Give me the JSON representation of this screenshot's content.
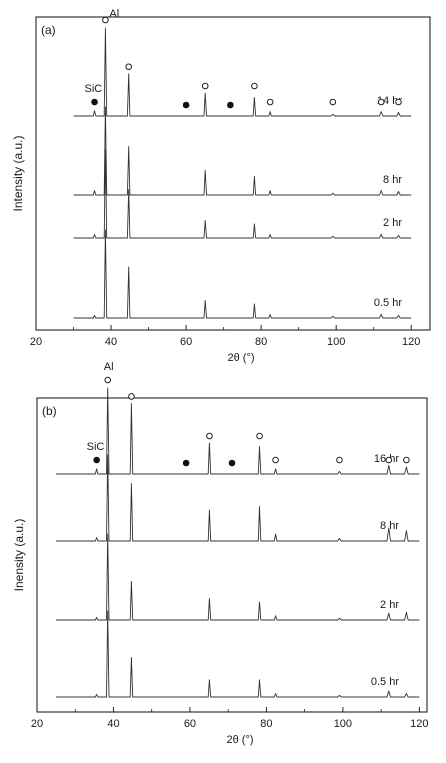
{
  "chart_data": [
    {
      "type": "line",
      "panel_label": "(a)",
      "xlabel": "2θ (°)",
      "ylabel": "Intensity (a.u.)",
      "xlim": [
        20,
        125
      ],
      "xticks": [
        20,
        40,
        60,
        80,
        100,
        120
      ],
      "x_range_plotted": [
        30,
        120
      ],
      "grid": false,
      "phase_labels": {
        "sic": "SiC",
        "al": "Al"
      },
      "series": [
        {
          "name": "14 hr",
          "peaks": [
            [
              35.6,
              0.06
            ],
            [
              38.5,
              1.0
            ],
            [
              44.7,
              0.48
            ],
            [
              65.1,
              0.26
            ],
            [
              78.2,
              0.21
            ],
            [
              82.4,
              0.05
            ],
            [
              99.1,
              0.02
            ],
            [
              112.0,
              0.05
            ],
            [
              116.6,
              0.04
            ]
          ],
          "open_markers": [
            38.5,
            44.7,
            65.1,
            78.2,
            82.4,
            99.1,
            112.0,
            116.6
          ],
          "filled_markers": [
            35.6,
            60.0,
            71.8
          ]
        },
        {
          "name": "8 hr",
          "peaks": [
            [
              35.6,
              0.05
            ],
            [
              38.5,
              1.0
            ],
            [
              44.7,
              0.55
            ],
            [
              65.1,
              0.28
            ],
            [
              78.2,
              0.21
            ],
            [
              82.4,
              0.05
            ],
            [
              99.1,
              0.02
            ],
            [
              112.0,
              0.05
            ],
            [
              116.6,
              0.04
            ]
          ]
        },
        {
          "name": "2 hr",
          "peaks": [
            [
              35.6,
              0.04
            ],
            [
              38.5,
              1.0
            ],
            [
              44.7,
              0.55
            ],
            [
              65.1,
              0.2
            ],
            [
              78.2,
              0.16
            ],
            [
              82.4,
              0.04
            ],
            [
              99.1,
              0.02
            ],
            [
              112.0,
              0.04
            ],
            [
              116.6,
              0.03
            ]
          ]
        },
        {
          "name": "0.5 hr",
          "peaks": [
            [
              35.6,
              0.03
            ],
            [
              38.5,
              1.0
            ],
            [
              44.7,
              0.58
            ],
            [
              65.1,
              0.2
            ],
            [
              78.2,
              0.16
            ],
            [
              82.4,
              0.04
            ],
            [
              99.1,
              0.02
            ],
            [
              112.0,
              0.04
            ],
            [
              116.6,
              0.03
            ]
          ]
        }
      ]
    },
    {
      "type": "line",
      "panel_label": "(b)",
      "xlabel": "2θ (°)",
      "ylabel": "Inensity (a.u.)",
      "xlim": [
        20,
        122
      ],
      "xticks": [
        20,
        40,
        60,
        80,
        100,
        120
      ],
      "x_range_plotted": [
        25,
        120
      ],
      "grid": false,
      "phase_labels": {
        "sic": "SiC",
        "al": "Al"
      },
      "series": [
        {
          "name": "16 hr",
          "peaks": [
            [
              35.6,
              0.06
            ],
            [
              38.5,
              1.0
            ],
            [
              44.7,
              0.82
            ],
            [
              65.1,
              0.36
            ],
            [
              78.2,
              0.32
            ],
            [
              82.4,
              0.06
            ],
            [
              99.1,
              0.03
            ],
            [
              112.0,
              0.1
            ],
            [
              116.6,
              0.08
            ]
          ],
          "open_markers": [
            38.5,
            44.7,
            65.1,
            78.2,
            82.4,
            99.1,
            112.0,
            116.6
          ],
          "filled_markers": [
            35.6,
            59.0,
            71.0
          ]
        },
        {
          "name": "8 hr",
          "peaks": [
            [
              35.6,
              0.04
            ],
            [
              38.5,
              1.0
            ],
            [
              44.7,
              0.67
            ],
            [
              65.1,
              0.36
            ],
            [
              78.2,
              0.4
            ],
            [
              82.4,
              0.08
            ],
            [
              99.1,
              0.03
            ],
            [
              112.0,
              0.15
            ],
            [
              116.6,
              0.12
            ]
          ]
        },
        {
          "name": "2 hr",
          "peaks": [
            [
              35.6,
              0.03
            ],
            [
              38.5,
              1.0
            ],
            [
              44.7,
              0.45
            ],
            [
              65.1,
              0.25
            ],
            [
              78.2,
              0.21
            ],
            [
              82.4,
              0.05
            ],
            [
              99.1,
              0.02
            ],
            [
              112.0,
              0.08
            ],
            [
              116.6,
              0.09
            ]
          ]
        },
        {
          "name": "0.5 hr",
          "peaks": [
            [
              35.6,
              0.03
            ],
            [
              38.5,
              1.0
            ],
            [
              44.7,
              0.46
            ],
            [
              65.1,
              0.2
            ],
            [
              78.2,
              0.2
            ],
            [
              82.4,
              0.04
            ],
            [
              99.1,
              0.02
            ],
            [
              112.0,
              0.07
            ],
            [
              116.6,
              0.04
            ]
          ]
        }
      ]
    }
  ]
}
